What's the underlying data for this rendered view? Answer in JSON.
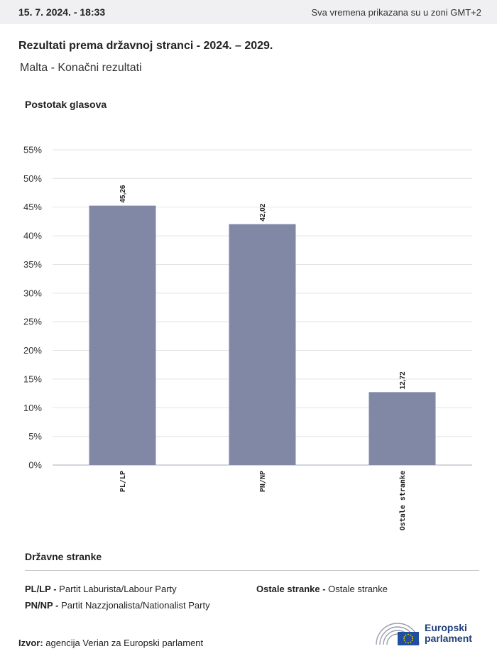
{
  "header": {
    "datetime": "15. 7. 2024. - 18:33",
    "timezone_note": "Sva vremena prikazana su u zoni GMT+2"
  },
  "title": "Rezultati prema državnoj stranci - 2024. – 2029.",
  "subtitle": "Malta - Konačni rezultati",
  "chart_data": {
    "type": "bar",
    "ylabel": "Postotak glasova",
    "categories": [
      "PL/LP",
      "PN/NP",
      "Ostale stranke"
    ],
    "values": [
      45.26,
      42.02,
      12.72
    ],
    "value_labels": [
      "45,26",
      "42,02",
      "12,72"
    ],
    "ylim": [
      0,
      55
    ],
    "yticks": [
      "0%",
      "5%",
      "10%",
      "15%",
      "20%",
      "25%",
      "30%",
      "35%",
      "40%",
      "45%",
      "50%",
      "55%"
    ],
    "grid": true,
    "bar_color": "#8088a6"
  },
  "legend": {
    "title": "Državne stranke",
    "items": [
      {
        "abbr": "PL/LP -",
        "name": "Partit Laburista/Labour Party"
      },
      {
        "abbr": "PN/NP -",
        "name": "Partit Nazzjonalista/Nationalist Party"
      },
      {
        "abbr": "Ostale stranke -",
        "name": "Ostale stranke"
      }
    ]
  },
  "source": {
    "label": "Izvor:",
    "text": "agencija Verian za Europski parlament"
  },
  "logo": {
    "line1": "Europski",
    "line2": "parlament"
  }
}
